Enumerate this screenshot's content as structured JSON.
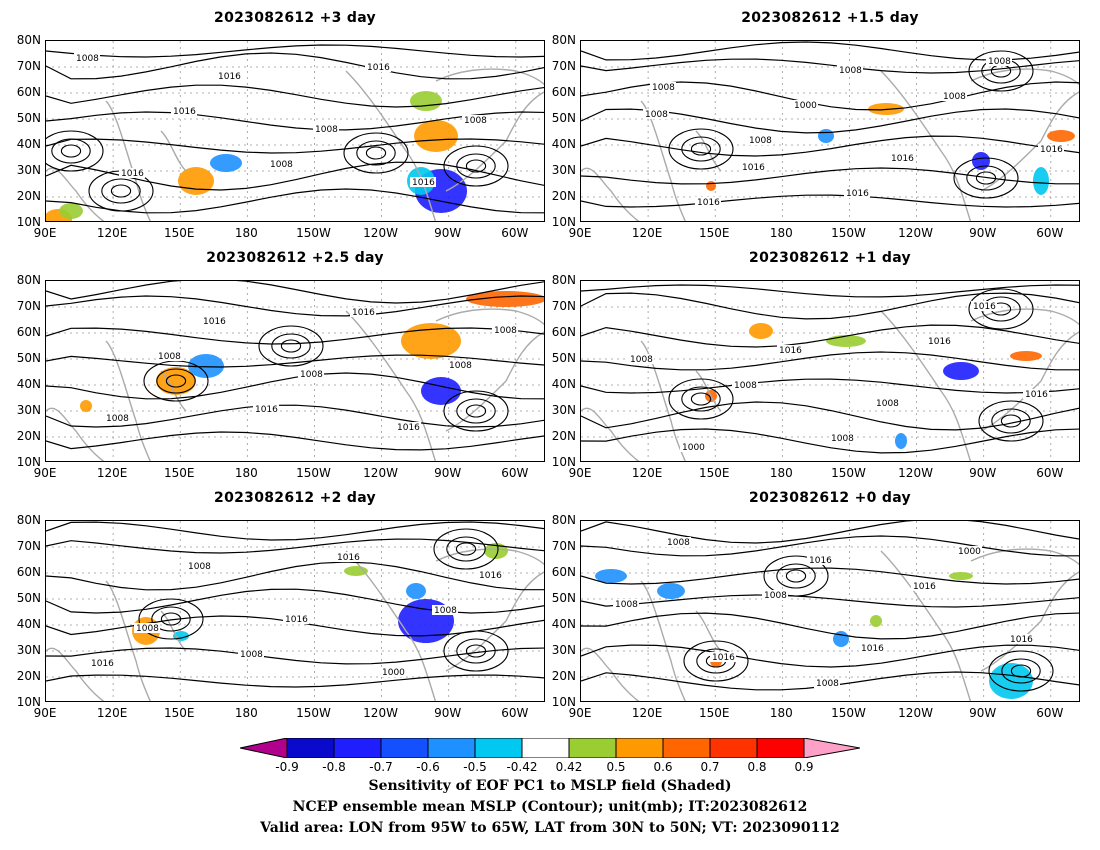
{
  "panels": [
    {
      "id": "p3d",
      "title": "2023082612  +3 day"
    },
    {
      "id": "p15d",
      "title": "2023082612  +1.5 day"
    },
    {
      "id": "p25d",
      "title": "2023082612  +2.5 day"
    },
    {
      "id": "p1d",
      "title": "2023082612  +1 day"
    },
    {
      "id": "p2d",
      "title": "2023082612  +2 day"
    },
    {
      "id": "p0d",
      "title": "2023082612  +0 day"
    }
  ],
  "axes": {
    "lat_labels": [
      "80N",
      "70N",
      "60N",
      "50N",
      "40N",
      "30N",
      "20N",
      "10N"
    ],
    "lon_labels": [
      "90E",
      "120E",
      "150E",
      "180",
      "150W",
      "120W",
      "90W",
      "60W"
    ]
  },
  "contour_labels": {
    "p3d": [
      "1008",
      "1016",
      "1008",
      "1016",
      "1008",
      "1016",
      "1016",
      "1008",
      "1016"
    ],
    "p15d": [
      "1008",
      "1008",
      "1016",
      "1008",
      "1016",
      "1016",
      "1000",
      "1016",
      "1008",
      "1008",
      "1016",
      "1008"
    ],
    "p25d": [
      "1008",
      "1016",
      "1016",
      "1008",
      "1008",
      "1016",
      "1008",
      "1016",
      "1008"
    ],
    "p1d": [
      "1008",
      "1008",
      "1016",
      "1016",
      "1000",
      "1016",
      "1008",
      "1016",
      "1008"
    ],
    "p2d": [
      "1008",
      "1016",
      "1008",
      "1016",
      "1008",
      "1016",
      "1000",
      "1016",
      "1008"
    ],
    "p0d": [
      "1008",
      "1016",
      "1016",
      "1008",
      "1008",
      "1016",
      "1000",
      "1008",
      "1016",
      "1016"
    ]
  },
  "colorbar": {
    "labels": [
      "-0.9",
      "-0.8",
      "-0.7",
      "-0.6",
      "-0.5",
      "-0.42",
      "0.42",
      "0.5",
      "0.6",
      "0.7",
      "0.8",
      "0.9"
    ],
    "colors": [
      "#0a0acc",
      "#1e1eff",
      "#1450ff",
      "#1e90ff",
      "#00c8f0",
      "#ffffff",
      "#9acd32",
      "#ff9900",
      "#ff6600",
      "#ff3300",
      "#ff0000"
    ],
    "low_extend_color": "#b0008c",
    "high_extend_color": "#ffa0c8"
  },
  "captions": {
    "line1": "Sensitivity of EOF PC1 to MSLP field (Shaded)",
    "line2": "NCEP ensemble mean MSLP (Contour); unit(mb); IT:2023082612",
    "line3": "Valid area: LON from 95W to 65W, LAT from 30N to 50N; VT: 2023090112"
  }
}
